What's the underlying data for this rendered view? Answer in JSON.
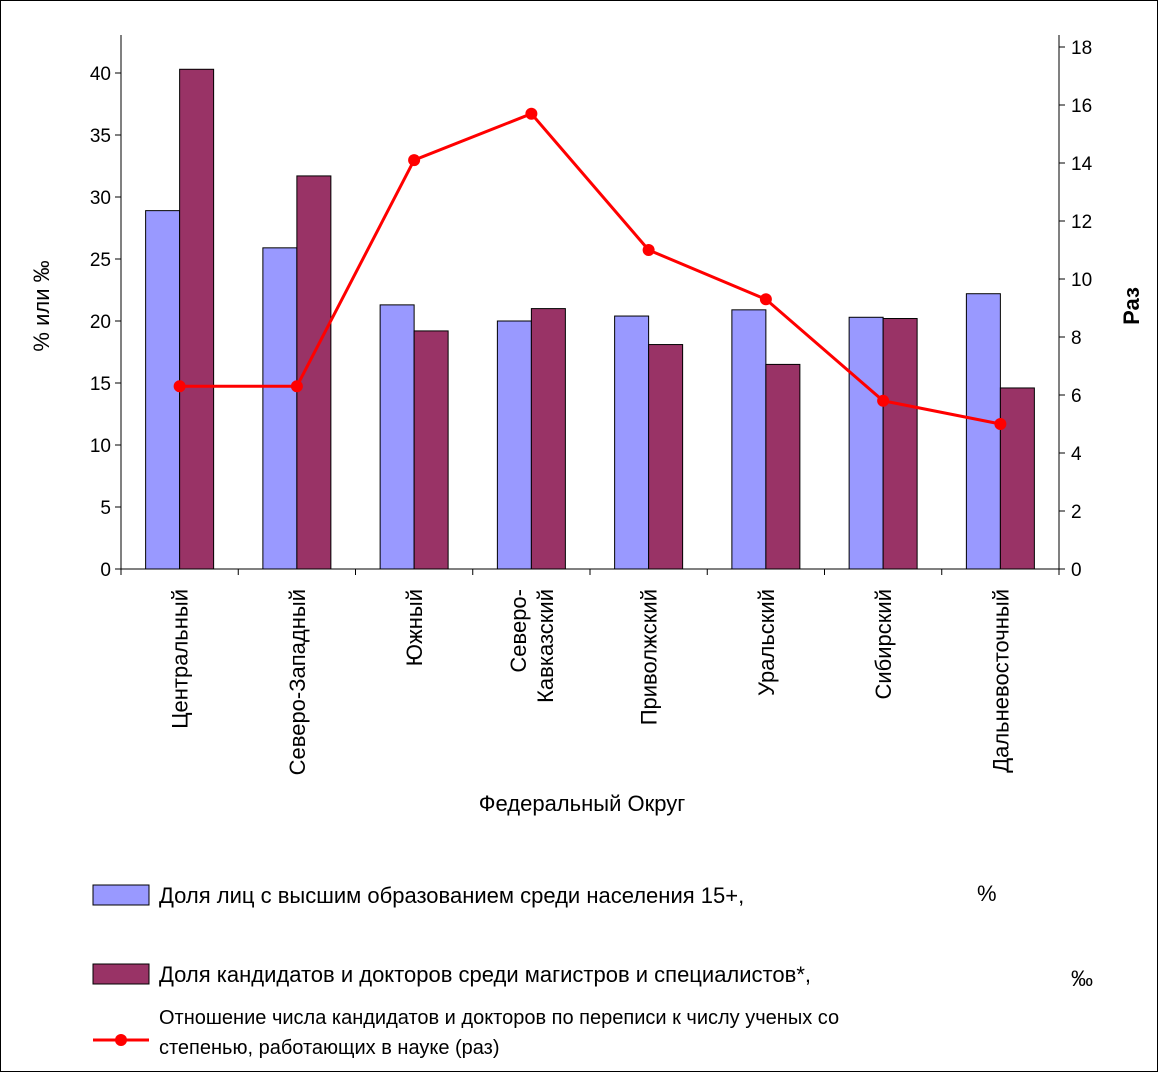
{
  "chart_data": {
    "type": "bar+line",
    "title": "",
    "xlabel": "Федеральный Округ",
    "ylabel_left": "% или ‰",
    "ylabel_right": "Раз",
    "ylim_left": [
      0,
      42
    ],
    "yticks_left": [
      0,
      5,
      10,
      15,
      20,
      25,
      30,
      35,
      40
    ],
    "ylim_right": [
      0,
      18
    ],
    "yticks_right": [
      0,
      2,
      4,
      6,
      8,
      10,
      12,
      14,
      16,
      18
    ],
    "grid": false,
    "legend_position": "bottom",
    "categories": [
      [
        "Центральный"
      ],
      [
        "Северо-Западный"
      ],
      [
        "Южный"
      ],
      [
        "Северо-",
        "Кавказский"
      ],
      [
        "Приволжский"
      ],
      [
        "Уральский"
      ],
      [
        "Сибирский"
      ],
      [
        "Дальневосточный"
      ]
    ],
    "series": [
      {
        "name": "Доля лиц с высшим образованием среди населения 15+,",
        "unit": "%",
        "type": "bar",
        "axis": "left",
        "color": "#9999ff",
        "values": [
          28.9,
          25.9,
          21.3,
          20.0,
          20.4,
          20.9,
          20.3,
          22.2
        ]
      },
      {
        "name": "Доля кандидатов и докторов среди магистров и специалистов*,",
        "unit": "‰",
        "type": "bar",
        "axis": "left",
        "color": "#993366",
        "values": [
          40.3,
          31.7,
          19.2,
          21.0,
          18.1,
          16.5,
          20.2,
          14.6
        ]
      },
      {
        "name": [
          "Отношение числа кандидатов и докторов по переписи к числу ученых со",
          "степенью, работающих в науке (раз)"
        ],
        "type": "line",
        "axis": "right",
        "color": "#ff0000",
        "values": [
          6.3,
          6.3,
          14.1,
          15.7,
          11.0,
          9.3,
          5.8,
          5.0
        ]
      }
    ]
  }
}
